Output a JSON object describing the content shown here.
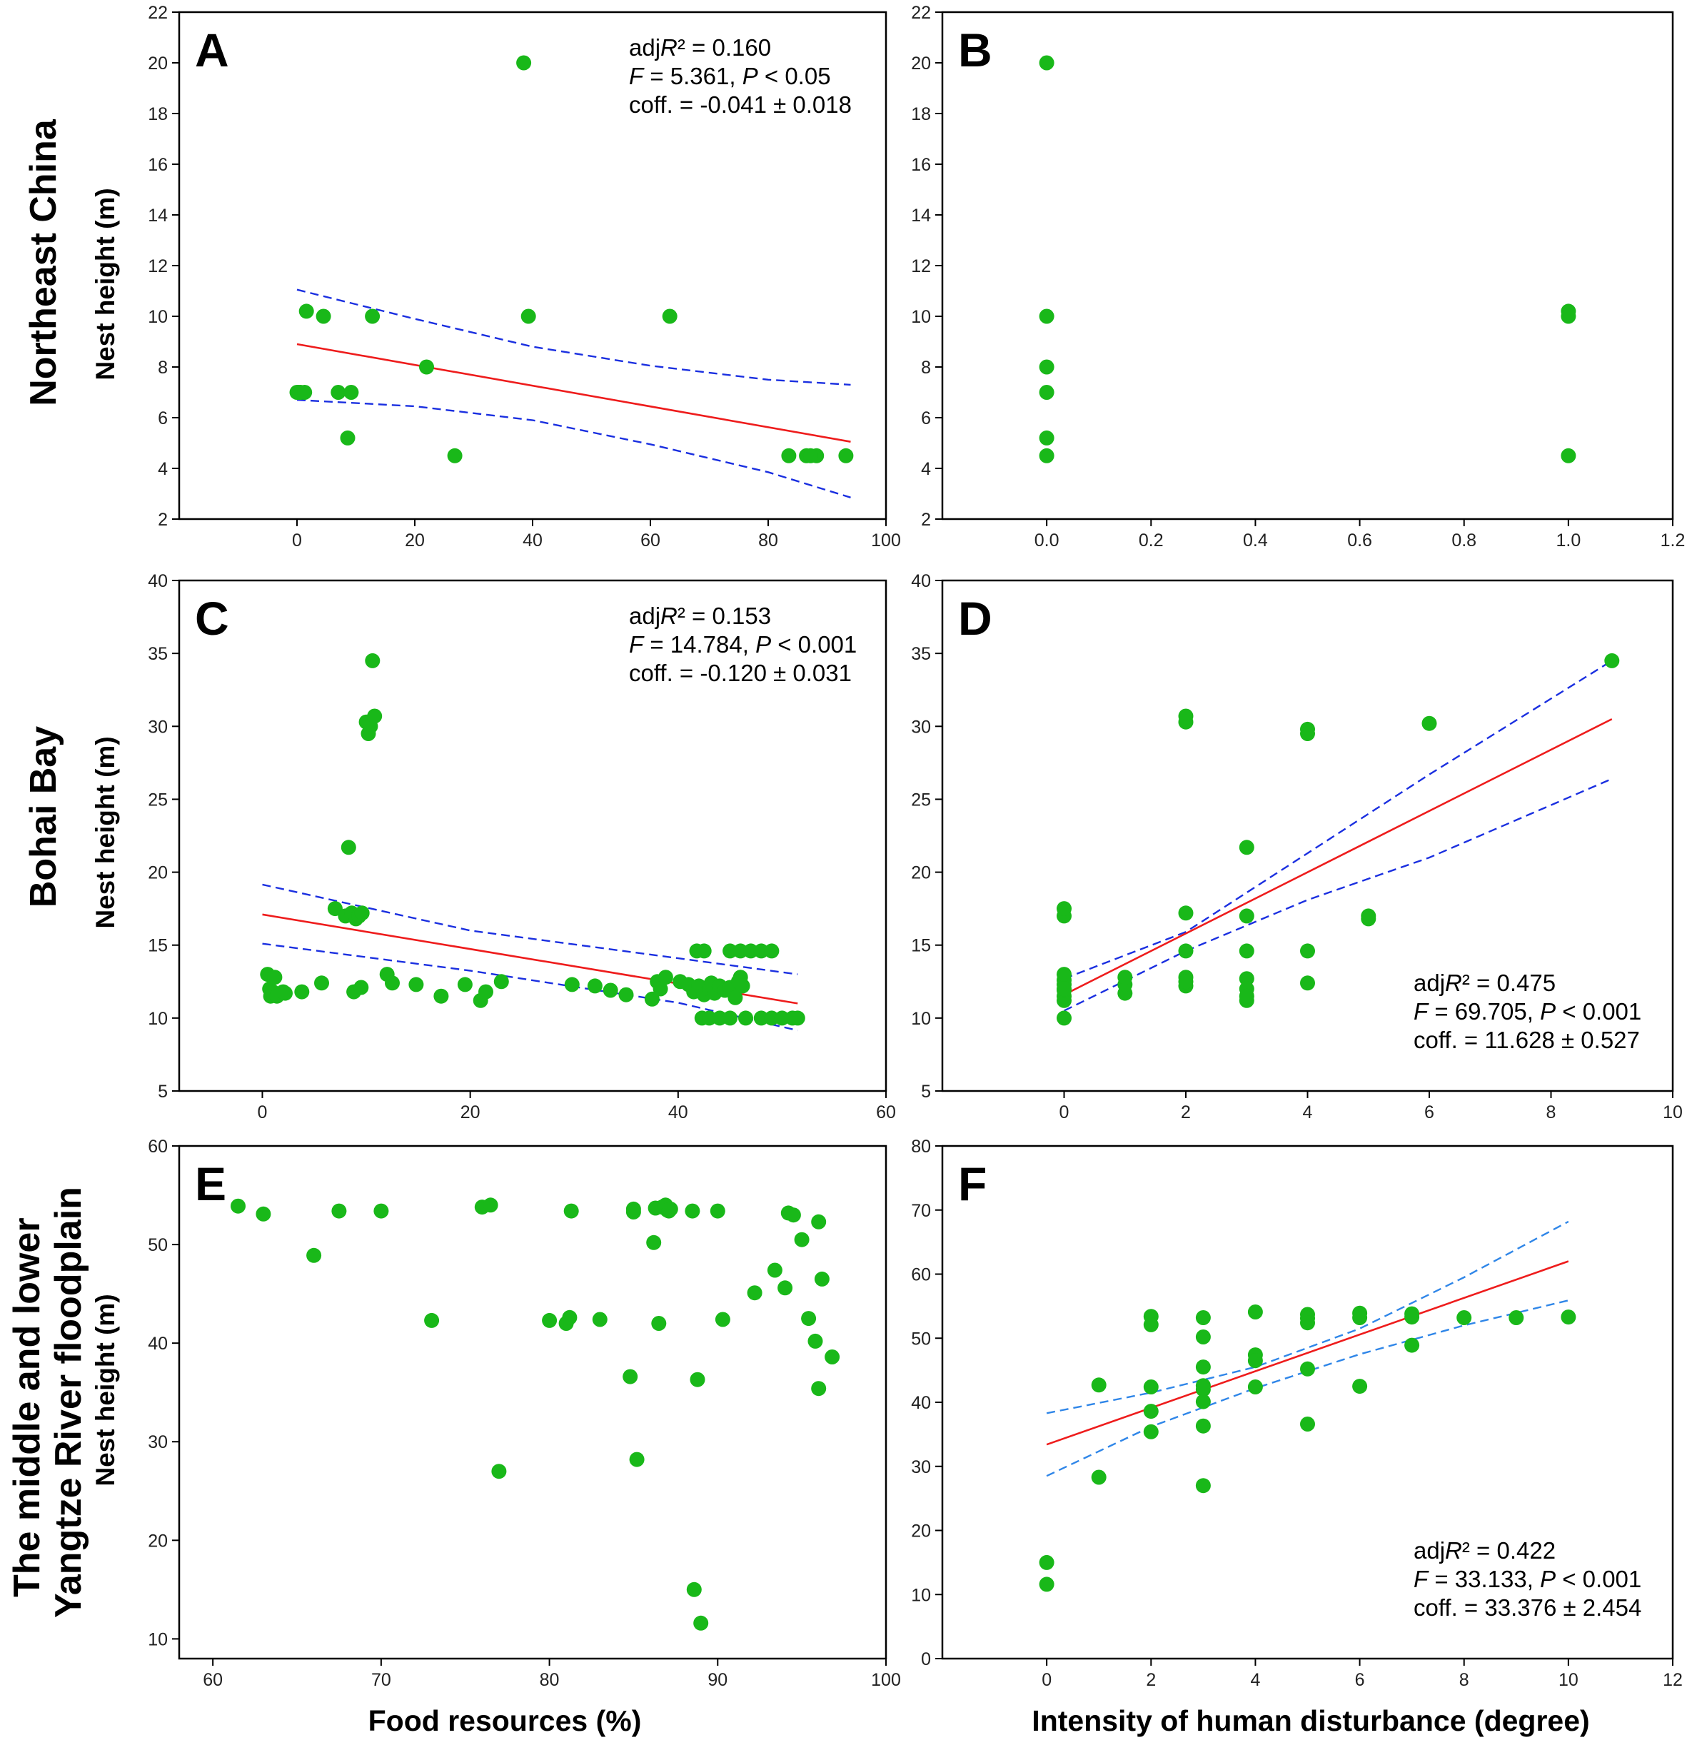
{
  "figure": {
    "row_labels": {
      "r1": [
        "Northeast China"
      ],
      "r2": [
        "Bohai Bay"
      ],
      "r3": [
        "The middle and lower",
        "Yangtze River floodplain"
      ]
    },
    "y_label": "Nest height (m)",
    "x_label_left": "Food resources (%)",
    "x_label_right": "Intensity of human disturbance (degree)"
  },
  "colors": {
    "points": "#19b819",
    "fit": "#ee1c1c",
    "ci_dark": "#1a2fe0",
    "ci_light": "#2f86e8",
    "axis": "#000000"
  },
  "chart_data": [
    {
      "panel": "A",
      "type": "scatter",
      "xlim": [
        -20,
        100
      ],
      "ylim": [
        2,
        22
      ],
      "xticks": [
        0,
        20,
        40,
        60,
        80,
        100
      ],
      "yticks": [
        2,
        4,
        6,
        8,
        10,
        12,
        14,
        16,
        18,
        20,
        22
      ],
      "tick_decimals": 0,
      "x": [
        0,
        0.3,
        0.6,
        1.3,
        1.6,
        4.5,
        7,
        9.2,
        12.8,
        8.6,
        22,
        26.8,
        38.5,
        39.3,
        63.3,
        83.5,
        86.5,
        88.2,
        87.2,
        93.2
      ],
      "y": [
        7,
        7,
        7,
        7,
        10.2,
        10,
        7,
        7,
        10,
        5.2,
        8,
        4.5,
        20,
        10,
        10,
        4.5,
        4.5,
        4.5,
        4.5,
        4.5
      ],
      "fit": [
        [
          0,
          8.9
        ],
        [
          94,
          5.05
        ]
      ],
      "ci_upper": [
        [
          0,
          11.05
        ],
        [
          20,
          9.9
        ],
        [
          40,
          8.8
        ],
        [
          60,
          8.05
        ],
        [
          80,
          7.5
        ],
        [
          94,
          7.3
        ]
      ],
      "ci_lower": [
        [
          0,
          6.7
        ],
        [
          20,
          6.45
        ],
        [
          40,
          5.9
        ],
        [
          60,
          4.95
        ],
        [
          80,
          3.85
        ],
        [
          94,
          2.85
        ]
      ],
      "ci_color": "#1a2fe0",
      "stats": [
        "adjR² = 0.160",
        "F = 5.361, P < 0.05",
        "coff. = -0.041 ± 0.018"
      ],
      "stats_pos": "top-right"
    },
    {
      "panel": "B",
      "type": "scatter",
      "xlim": [
        -0.2,
        1.2
      ],
      "ylim": [
        2,
        22
      ],
      "xticks": [
        0.0,
        0.2,
        0.4,
        0.6,
        0.8,
        1.0,
        1.2
      ],
      "yticks": [
        2,
        4,
        6,
        8,
        10,
        12,
        14,
        16,
        18,
        20,
        22
      ],
      "tick_decimals": 1,
      "x": [
        0,
        0,
        0,
        0,
        0,
        0,
        1,
        1,
        1
      ],
      "y": [
        20,
        10,
        8,
        7,
        5.2,
        4.5,
        10.2,
        10,
        4.5
      ],
      "stats": [],
      "stats_pos": "none"
    },
    {
      "panel": "C",
      "type": "scatter",
      "xlim": [
        -8,
        60
      ],
      "ylim": [
        5,
        40
      ],
      "xticks": [
        0,
        20,
        40,
        60
      ],
      "yticks": [
        5,
        10,
        15,
        20,
        25,
        30,
        35,
        40
      ],
      "tick_decimals": 0,
      "x": [
        0.5,
        0.7,
        0.8,
        1.0,
        1.2,
        1.4,
        2.0,
        2.2,
        3.8,
        5.7,
        7.0,
        8.0,
        8.3,
        8.6,
        9.0,
        9.3,
        9.6,
        10.0,
        10.2,
        10.4,
        10.6,
        10.8,
        8.8,
        9.5,
        12.0,
        12.5,
        14.8,
        17.2,
        19.5,
        21.0,
        21.5,
        23.0,
        29.8,
        32.0,
        33.5,
        35.0,
        37.5,
        38.0,
        38.3,
        38.8,
        40.2,
        41.0,
        41.5,
        42.0,
        42.5,
        43.0,
        43.2,
        43.5,
        44.0,
        44.5,
        45.0,
        45.5,
        46.0,
        41.8,
        42.5,
        45.0,
        46.0,
        47.0,
        48.0,
        49.0,
        42.3,
        43.0,
        44.0,
        45.0,
        46.5,
        48.0,
        49.0,
        50.0,
        51.0,
        51.5,
        45.8,
        46.2
      ],
      "y": [
        13.0,
        12.0,
        11.5,
        11.8,
        12.8,
        11.5,
        11.8,
        11.7,
        11.8,
        12.4,
        17.5,
        17.0,
        21.7,
        17.2,
        16.8,
        17.0,
        17.2,
        30.3,
        29.5,
        30.0,
        34.5,
        30.7,
        11.8,
        12.1,
        13.0,
        12.4,
        12.3,
        11.5,
        12.3,
        11.2,
        11.8,
        12.5,
        12.3,
        12.2,
        11.9,
        11.6,
        11.3,
        12.5,
        12.0,
        12.8,
        12.5,
        12.3,
        11.8,
        12.2,
        11.6,
        12.0,
        12.4,
        11.7,
        12.2,
        11.9,
        12.1,
        11.4,
        12.8,
        14.6,
        14.6,
        14.6,
        14.6,
        14.6,
        14.6,
        14.6,
        10.0,
        10.0,
        10.0,
        10.0,
        10.0,
        10.0,
        10.0,
        10.0,
        10.0,
        10.0,
        12.5,
        12.2
      ],
      "fit": [
        [
          0,
          17.1
        ],
        [
          51.5,
          11.0
        ]
      ],
      "ci_upper": [
        [
          0,
          19.15
        ],
        [
          20,
          16.0
        ],
        [
          40,
          14.1
        ],
        [
          51.5,
          13.0
        ]
      ],
      "ci_lower": [
        [
          0,
          15.1
        ],
        [
          20,
          13.25
        ],
        [
          40,
          11.05
        ],
        [
          51.5,
          9.15
        ]
      ],
      "ci_color": "#1a2fe0",
      "stats": [
        "adjR² = 0.153",
        "F = 14.784, P < 0.001",
        "coff. = -0.120 ± 0.031"
      ],
      "stats_pos": "top-right"
    },
    {
      "panel": "D",
      "type": "scatter",
      "xlim": [
        -2,
        10
      ],
      "ylim": [
        5,
        40
      ],
      "xticks": [
        0,
        2,
        4,
        6,
        8,
        10
      ],
      "yticks": [
        5,
        10,
        15,
        20,
        25,
        30,
        35,
        40
      ],
      "tick_decimals": 0,
      "x": [
        0,
        0,
        0,
        0,
        0,
        0,
        0,
        0,
        0,
        0,
        1,
        1,
        1,
        2,
        2,
        2,
        2,
        2,
        2,
        2,
        3,
        3,
        3,
        3,
        3,
        3,
        3,
        4,
        4,
        4,
        4,
        5,
        5,
        6,
        9
      ],
      "y": [
        10.0,
        11.2,
        11.5,
        11.9,
        12.3,
        12.6,
        13.0,
        17.0,
        17.5,
        12.0,
        11.7,
        12.3,
        12.8,
        30.7,
        30.3,
        17.2,
        14.6,
        12.8,
        12.2,
        12.5,
        21.7,
        17.0,
        14.6,
        12.7,
        12.0,
        11.2,
        11.5,
        29.8,
        29.5,
        14.6,
        12.4,
        17.0,
        16.8,
        30.2,
        34.5
      ],
      "fit": [
        [
          0,
          11.6
        ],
        [
          9,
          30.5
        ]
      ],
      "ci_upper": [
        [
          0,
          12.7
        ],
        [
          2,
          15.9
        ],
        [
          4,
          21.3
        ],
        [
          6,
          26.7
        ],
        [
          9,
          34.5
        ]
      ],
      "ci_lower": [
        [
          0,
          10.5
        ],
        [
          2,
          14.6
        ],
        [
          4,
          18.1
        ],
        [
          6,
          21.0
        ],
        [
          9,
          26.4
        ]
      ],
      "ci_color": "#1a2fe0",
      "stats": [
        "adjR² = 0.475",
        "F = 69.705, P < 0.001",
        "coff. = 11.628 ± 0.527"
      ],
      "stats_pos": "bottom-right"
    },
    {
      "panel": "E",
      "type": "scatter",
      "xlim": [
        58,
        100
      ],
      "ylim": [
        8,
        60
      ],
      "xticks": [
        60,
        70,
        80,
        90,
        100
      ],
      "yticks": [
        10,
        20,
        30,
        40,
        50,
        60
      ],
      "tick_decimals": 0,
      "x": [
        61.5,
        63,
        66,
        67.5,
        70,
        73,
        76,
        76.5,
        77,
        80,
        81,
        81.2,
        81.3,
        83,
        84.8,
        85,
        85,
        85.2,
        86.2,
        86.3,
        86.5,
        86.7,
        86.9,
        87.0,
        87.1,
        87.2,
        88.5,
        88.6,
        88.8,
        89.0,
        90.0,
        90.3,
        92.2,
        93.4,
        94.0,
        94.2,
        94.5,
        95.0,
        95.4,
        95.8,
        96.0,
        96.0,
        96.2,
        96.8
      ],
      "y": [
        53.9,
        53.1,
        48.9,
        53.4,
        53.4,
        42.3,
        53.8,
        54.0,
        27.0,
        42.3,
        42.0,
        42.6,
        53.4,
        42.4,
        36.6,
        53.3,
        53.6,
        28.2,
        50.2,
        53.7,
        42.0,
        53.8,
        54.0,
        53.5,
        53.4,
        53.6,
        53.4,
        15.0,
        36.3,
        11.6,
        53.4,
        42.4,
        45.1,
        47.4,
        45.6,
        53.2,
        53.0,
        50.5,
        42.5,
        40.2,
        52.3,
        35.4,
        46.5,
        38.6
      ],
      "stats": [],
      "stats_pos": "none"
    },
    {
      "panel": "F",
      "type": "scatter",
      "xlim": [
        -2,
        12
      ],
      "ylim": [
        0,
        80
      ],
      "xticks": [
        0,
        2,
        4,
        6,
        8,
        10,
        12
      ],
      "yticks": [
        0,
        10,
        20,
        30,
        40,
        50,
        60,
        70,
        80
      ],
      "tick_decimals": 0,
      "x": [
        0,
        0,
        1,
        1,
        2,
        2,
        2,
        2,
        2,
        3,
        3,
        3,
        3,
        3,
        3,
        3,
        3,
        4,
        4,
        4,
        4,
        5,
        5,
        5,
        5,
        5,
        6,
        6,
        6,
        7,
        7,
        7,
        8,
        9,
        10
      ],
      "y": [
        15.0,
        11.6,
        42.7,
        28.3,
        53.4,
        52.1,
        42.4,
        38.6,
        35.4,
        53.2,
        50.2,
        45.5,
        42.6,
        42.0,
        40.1,
        36.3,
        27.0,
        54.1,
        47.4,
        46.5,
        42.4,
        53.7,
        53.1,
        52.4,
        45.2,
        36.6,
        53.9,
        53.2,
        42.5,
        53.8,
        53.3,
        48.9,
        53.2,
        53.2,
        53.3
      ],
      "fit": [
        [
          0,
          33.4
        ],
        [
          10,
          62.0
        ]
      ],
      "ci_upper": [
        [
          0,
          38.3
        ],
        [
          2,
          41.5
        ],
        [
          4,
          45.5
        ],
        [
          6,
          51.5
        ],
        [
          8,
          59.5
        ],
        [
          10,
          68.2
        ]
      ],
      "ci_lower": [
        [
          0,
          28.5
        ],
        [
          2,
          36.2
        ],
        [
          4,
          42.2
        ],
        [
          6,
          47.5
        ],
        [
          8,
          52.0
        ],
        [
          10,
          55.9
        ]
      ],
      "ci_color": "#2f86e8",
      "stats": [
        "adjR² = 0.422",
        "F = 33.133, P < 0.001",
        "coff. = 33.376 ± 2.454"
      ],
      "stats_pos": "bottom-right"
    }
  ]
}
